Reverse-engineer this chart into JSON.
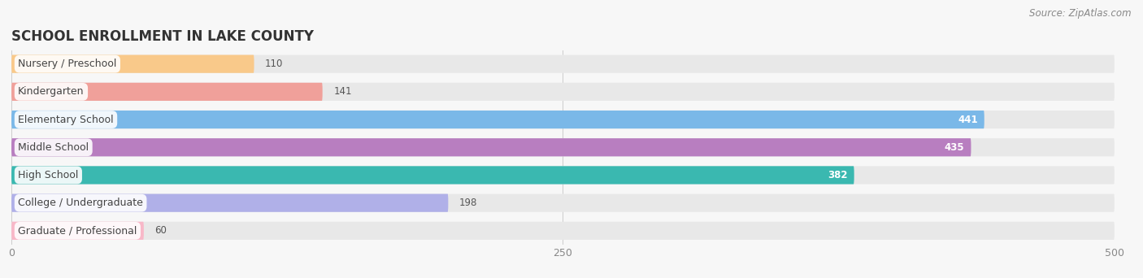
{
  "title": "SCHOOL ENROLLMENT IN LAKE COUNTY",
  "source": "Source: ZipAtlas.com",
  "categories": [
    "Nursery / Preschool",
    "Kindergarten",
    "Elementary School",
    "Middle School",
    "High School",
    "College / Undergraduate",
    "Graduate / Professional"
  ],
  "values": [
    110,
    141,
    441,
    435,
    382,
    198,
    60
  ],
  "bar_colors": [
    "#f9c98a",
    "#f0a09a",
    "#7ab8e8",
    "#b87ec0",
    "#3ab8b0",
    "#b0b0e8",
    "#f8b8c8"
  ],
  "xlim": [
    0,
    500
  ],
  "xticks": [
    0,
    250,
    500
  ],
  "background_color": "#f7f7f7",
  "bar_bg_color": "#e8e8e8",
  "title_fontsize": 12,
  "label_fontsize": 9,
  "value_fontsize": 8.5,
  "source_fontsize": 8.5
}
